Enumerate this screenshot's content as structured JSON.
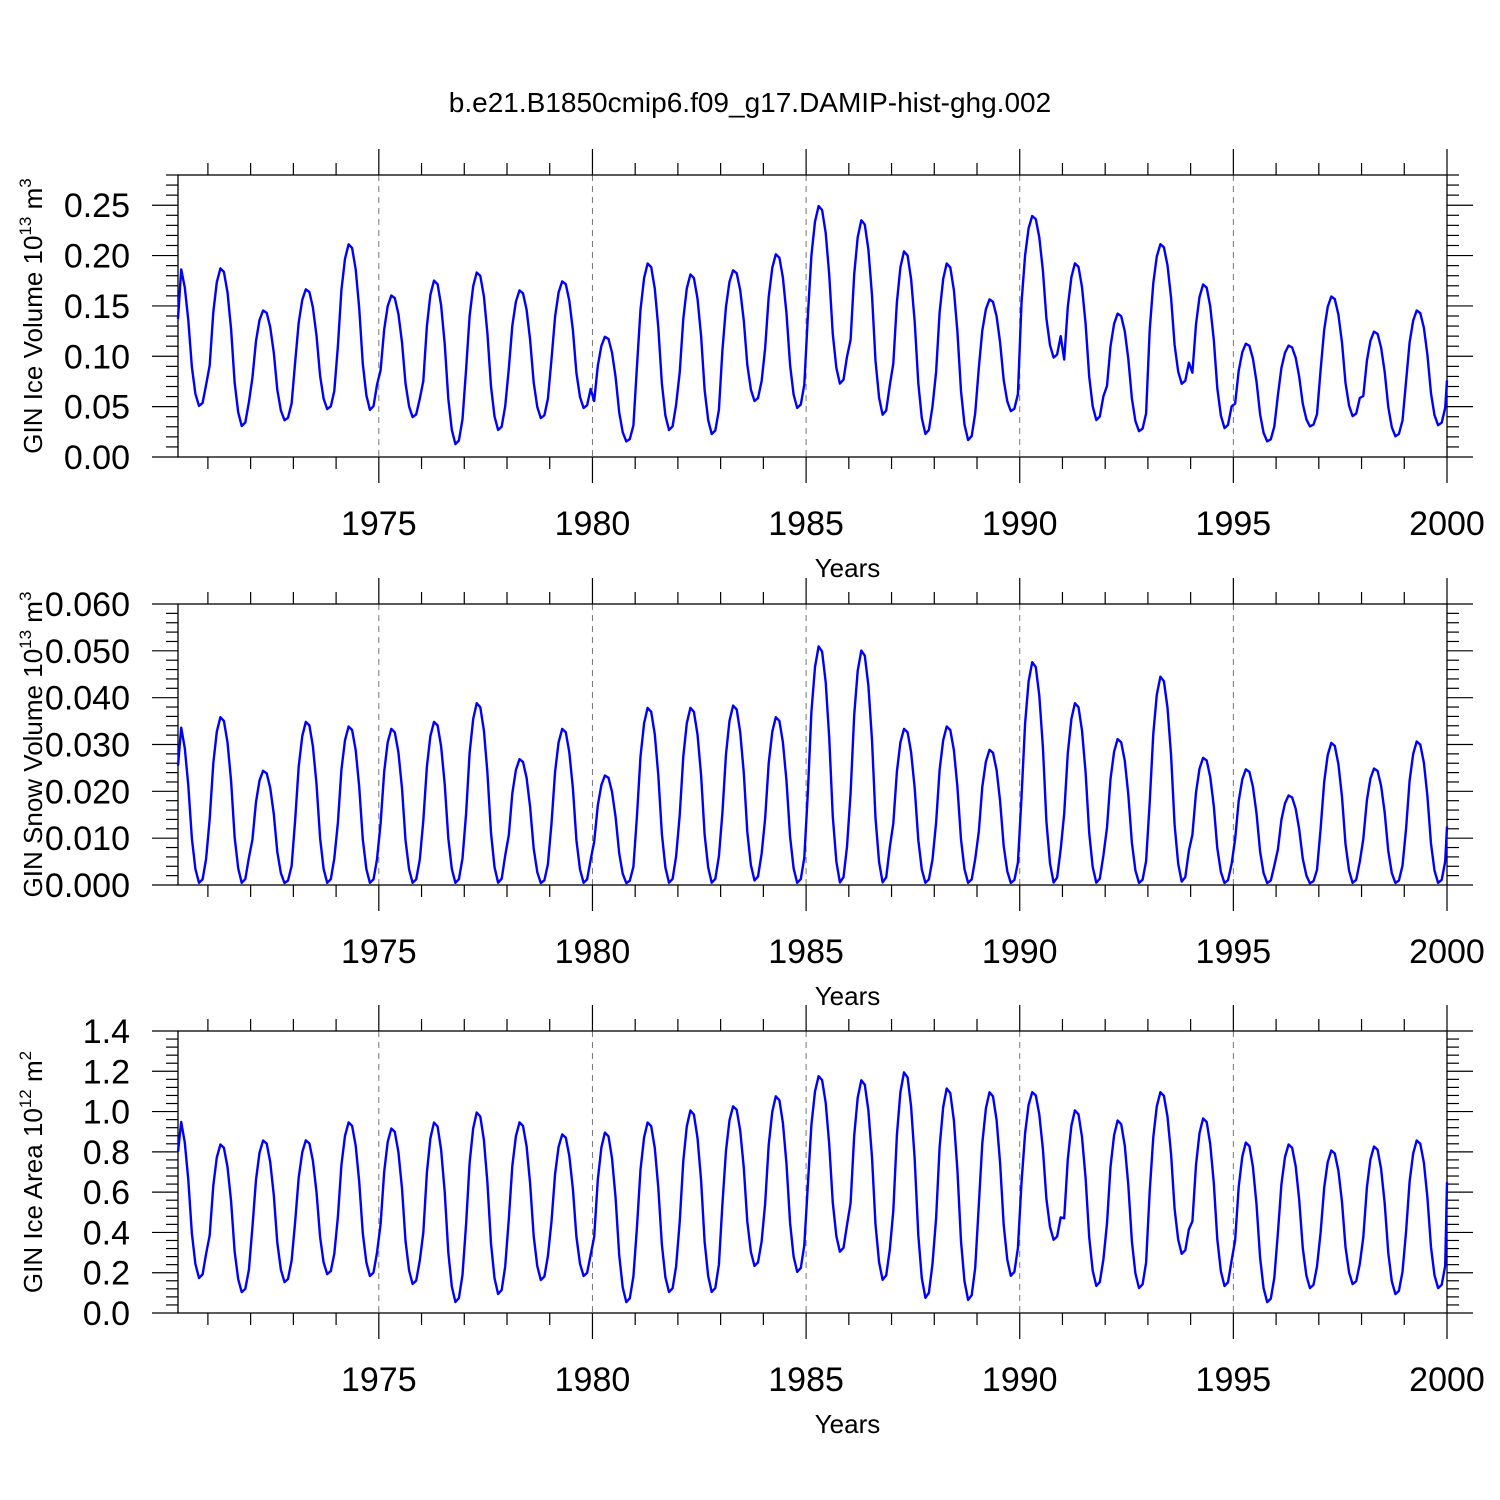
{
  "page": {
    "title": "b.e21.B1850cmip6.f09_g17.DAMIP-hist-ghg.002",
    "series_color": "#0000ff"
  },
  "chart_data": [
    {
      "type": "line",
      "name": "ice-volume",
      "ylabel": "GIN Ice Volume 10",
      "ylabel_sup": "13",
      "ylabel_unit": " m",
      "ylabel_unit_sup": "3",
      "xlabel": "Years",
      "xlim": [
        1970.3,
        2000
      ],
      "ylim": [
        0,
        0.28
      ],
      "yticks": [
        0.0,
        0.05,
        0.1,
        0.15,
        0.2,
        0.25
      ],
      "ytick_labels": [
        "0.00",
        "0.05",
        "0.10",
        "0.15",
        "0.20",
        "0.25"
      ],
      "xticks": [
        1975,
        1980,
        1985,
        1990,
        1995,
        2000
      ],
      "xtick_labels": [
        "1975",
        "1980",
        "1985",
        "1990",
        "1995",
        "2000"
      ],
      "series": [
        {
          "name": "GIN Ice Volume",
          "annual_max": [
            0.19,
            0.188,
            0.146,
            0.167,
            0.212,
            0.161,
            0.176,
            0.184,
            0.166,
            0.175,
            0.12,
            0.193,
            0.182,
            0.186,
            0.202,
            0.25,
            0.236,
            0.205,
            0.193,
            0.157,
            0.24,
            0.193,
            0.143,
            0.212,
            0.172,
            0.113,
            0.111,
            0.16,
            0.125,
            0.146
          ],
          "annual_min": [
            0.05,
            0.03,
            0.036,
            0.047,
            0.046,
            0.039,
            0.012,
            0.026,
            0.038,
            0.048,
            0.015,
            0.026,
            0.022,
            0.055,
            0.048,
            0.072,
            0.041,
            0.022,
            0.016,
            0.045,
            0.098,
            0.036,
            0.025,
            0.072,
            0.028,
            0.015,
            0.03,
            0.04,
            0.02,
            0.031
          ],
          "start_value": 0.137,
          "end_value": 0.076
        }
      ]
    },
    {
      "type": "line",
      "name": "snow-volume",
      "ylabel": "GIN Snow Volume 10",
      "ylabel_sup": "13",
      "ylabel_unit": " m",
      "ylabel_unit_sup": "3",
      "xlabel": "Years",
      "xlim": [
        1970.3,
        2000
      ],
      "ylim": [
        0,
        0.06
      ],
      "yticks": [
        0.0,
        0.01,
        0.02,
        0.03,
        0.04,
        0.05,
        0.06
      ],
      "ytick_labels": [
        "0.000",
        "0.010",
        "0.020",
        "0.030",
        "0.040",
        "0.050",
        "0.060"
      ],
      "xticks": [
        1975,
        1980,
        1985,
        1990,
        1995,
        2000
      ],
      "xtick_labels": [
        "1975",
        "1980",
        "1985",
        "1990",
        "1995",
        "2000"
      ],
      "series": [
        {
          "name": "GIN Snow Volume",
          "annual_max": [
            0.0345,
            0.036,
            0.0245,
            0.035,
            0.034,
            0.0335,
            0.035,
            0.039,
            0.027,
            0.0335,
            0.0235,
            0.038,
            0.038,
            0.0385,
            0.036,
            0.0512,
            0.0503,
            0.0335,
            0.034,
            0.029,
            0.0478,
            0.039,
            0.0313,
            0.0447,
            0.0273,
            0.0248,
            0.0192,
            0.0305,
            0.025,
            0.0308
          ],
          "annual_min": [
            0.0003,
            0.0003,
            0.0003,
            0.0003,
            0.0003,
            0.0003,
            0.0003,
            0.0003,
            0.0003,
            0.0003,
            0.0003,
            0.0003,
            0.0003,
            0.0008,
            0.0003,
            0.0003,
            0.0003,
            0.0003,
            0.0003,
            0.0003,
            0.0003,
            0.0003,
            0.0003,
            0.0005,
            0.0003,
            0.0003,
            0.0003,
            0.0003,
            0.0003,
            0.0003
          ],
          "start_value": 0.0255,
          "end_value": 0.0125
        }
      ]
    },
    {
      "type": "line",
      "name": "ice-area",
      "ylabel": "GIN Ice Area 10",
      "ylabel_sup": "12",
      "ylabel_unit": " m",
      "ylabel_unit_sup": "2",
      "xlabel": "Years",
      "xlim": [
        1970.3,
        2000
      ],
      "ylim": [
        0,
        1.4
      ],
      "yticks": [
        0.0,
        0.2,
        0.4,
        0.6,
        0.8,
        1.0,
        1.2,
        1.4
      ],
      "ytick_labels": [
        "0.0",
        "0.2",
        "0.4",
        "0.6",
        "0.8",
        "1.0",
        "1.2",
        "1.4"
      ],
      "xticks": [
        1975,
        1980,
        1985,
        1990,
        1995,
        2000
      ],
      "xtick_labels": [
        "1975",
        "1980",
        "1985",
        "1990",
        "1995",
        "2000"
      ],
      "series": [
        {
          "name": "GIN Ice Area",
          "annual_max": [
            0.97,
            0.84,
            0.86,
            0.86,
            0.95,
            0.92,
            0.95,
            1.0,
            0.95,
            0.89,
            0.9,
            0.95,
            1.01,
            1.03,
            1.08,
            1.18,
            1.16,
            1.2,
            1.12,
            1.1,
            1.1,
            1.01,
            0.96,
            1.1,
            0.97,
            0.85,
            0.84,
            0.81,
            0.83,
            0.86
          ],
          "annual_min": [
            0.17,
            0.1,
            0.15,
            0.19,
            0.18,
            0.14,
            0.05,
            0.09,
            0.16,
            0.18,
            0.05,
            0.1,
            0.1,
            0.23,
            0.2,
            0.3,
            0.16,
            0.07,
            0.06,
            0.18,
            0.36,
            0.13,
            0.12,
            0.29,
            0.13,
            0.05,
            0.12,
            0.14,
            0.09,
            0.12
          ],
          "start_value": 0.8,
          "end_value": 0.65
        }
      ]
    }
  ]
}
